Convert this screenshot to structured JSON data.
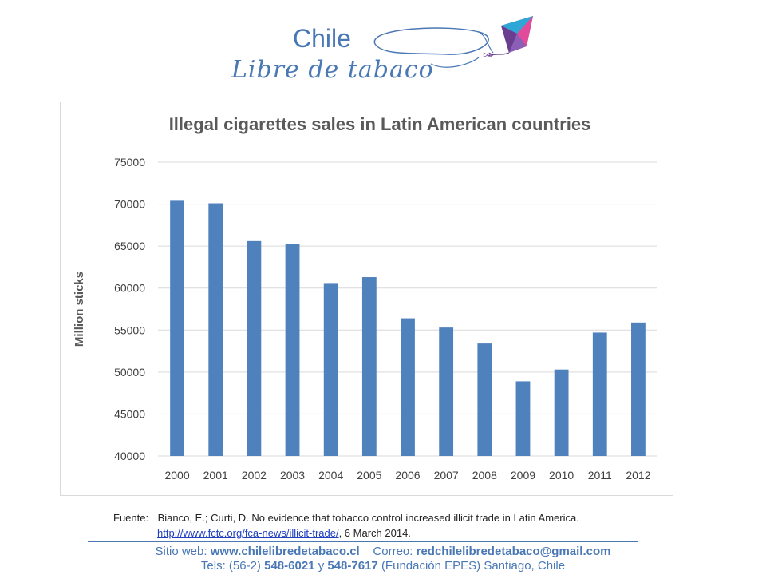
{
  "logo": {
    "line1": "Chile",
    "line2": "Libre de tabaco",
    "kite_colors": [
      "#6a3d8f",
      "#2fa7d6",
      "#e14b9a",
      "#8c5fb7"
    ]
  },
  "chart_data": {
    "type": "bar",
    "title": "Illegal  cigarettes sales in Latin American countries",
    "xlabel": "",
    "ylabel": "Million  sticks",
    "categories": [
      "2000",
      "2001",
      "2002",
      "2003",
      "2004",
      "2005",
      "2006",
      "2007",
      "2008",
      "2009",
      "2010",
      "2011",
      "2012"
    ],
    "values": [
      70400,
      70100,
      65600,
      65300,
      60600,
      61300,
      56400,
      55300,
      53400,
      48900,
      50300,
      54700,
      55900
    ],
    "ylim": [
      40000,
      75000
    ],
    "yticks": [
      "40000",
      "45000",
      "50000",
      "55000",
      "60000",
      "65000",
      "70000",
      "75000"
    ],
    "grid": true,
    "bar_color": "#4f81bd"
  },
  "source": {
    "label": "Fuente:",
    "text": "Bianco, E.; Curti, D. No evidence that tobacco control increased illicit trade in Latin America.",
    "link": "http://www.fctc.org/fca-news/illicit-trade/",
    "date": ", 6 March 2014."
  },
  "footer": {
    "web_label": "Sitio web:",
    "web": "www.chilelibredetabaco.cl",
    "mail_label": "Correo:",
    "mail": "redchilelibredetabaco@gmail.com",
    "tel_label": "Tels: (56-2)",
    "tel1": "548-6021",
    "y": "y",
    "tel2": "548-7617",
    "org": "(Fundación EPES)  Santiago, Chile"
  }
}
